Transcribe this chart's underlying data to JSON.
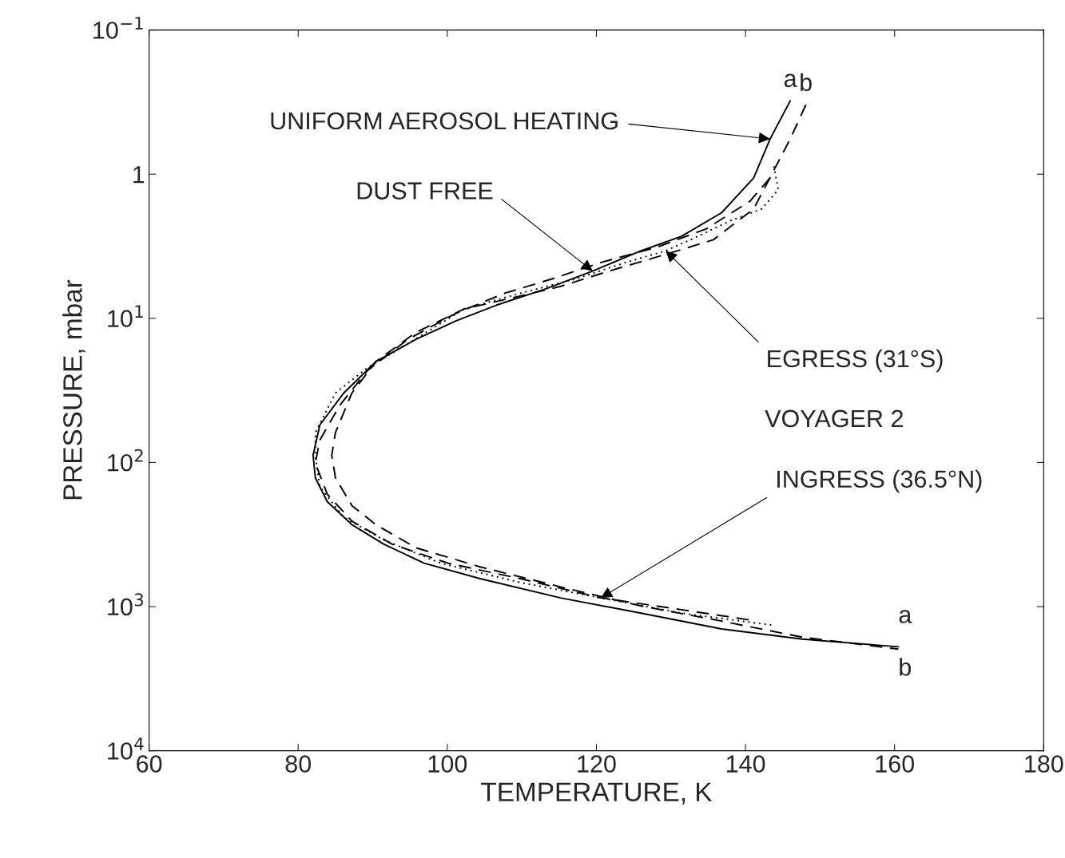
{
  "chart_data": {
    "type": "line",
    "xlabel": "TEMPERATURE, K",
    "ylabel": "PRESSURE, mbar",
    "log": "y",
    "xlim": [
      60,
      180
    ],
    "xticks": [
      60,
      80,
      100,
      120,
      140,
      160,
      180
    ],
    "ylim": [
      10000,
      0.1
    ],
    "yticks": [
      {
        "value": 0.1,
        "label": "10$^{−1}$"
      },
      1,
      {
        "value": 10,
        "label": "10$^{1}$"
      },
      {
        "value": 100,
        "label": "10$^{2}$"
      },
      {
        "value": 1000,
        "label": "10$^{3}$"
      },
      {
        "value": 10000,
        "label": "10$^{4}$"
      }
    ],
    "grid": false,
    "marker": "none",
    "series": [
      {
        "name": "a",
        "color": "#000000",
        "line_style": "solid",
        "x": [
          146,
          143.3,
          141.1,
          136.8,
          131.4,
          126,
          119.5,
          113,
          106.6,
          101.2,
          95.8,
          90.4,
          86.1,
          82.9,
          82,
          82.3,
          83.9,
          87.2,
          91.5,
          96.9,
          104.4,
          115.2,
          126,
          136.8,
          147.6,
          160.5
        ],
        "values": [
          0.31,
          0.57,
          1.06,
          1.85,
          2.7,
          3.4,
          4.7,
          6.3,
          8.1,
          10.4,
          14,
          20,
          33,
          55,
          89,
          128,
          187,
          270,
          369,
          500,
          640,
          870,
          1110,
          1430,
          1680,
          1900
        ]
      },
      {
        "name": "b",
        "color": "#000000",
        "line_style": "dashed",
        "x": [
          148.1,
          146,
          143.8,
          141.1,
          135.7,
          129.3,
          121.7,
          115.2,
          108.8,
          102.3,
          95.8,
          90.4,
          87.2,
          85,
          84.5,
          85,
          87.2,
          90.4,
          95.8,
          104.4,
          115.2,
          126,
          136.8,
          147.6,
          160.5
        ],
        "values": [
          0.33,
          0.57,
          0.94,
          1.74,
          2.85,
          3.6,
          4.7,
          6,
          7.2,
          8.6,
          12.5,
          20,
          33,
          62,
          89,
          128,
          199,
          270,
          391,
          530,
          730,
          990,
          1260,
          1630,
          1970
        ]
      },
      {
        "color": "#000000",
        "line_style": "dotted",
        "x": [
          143.8,
          144.4,
          142.2,
          138,
          133.6,
          129.3,
          123.9,
          117.4,
          109.8,
          102.3,
          94.7,
          89.3,
          85,
          82.3,
          82.3,
          82.9,
          86.1,
          91.5,
          99.1,
          109.8,
          120.6,
          131.4,
          143.8
        ],
        "values": [
          0.88,
          1.28,
          1.74,
          2.1,
          2.7,
          3.4,
          4.1,
          5.3,
          6.7,
          8.6,
          15,
          22,
          33,
          62,
          89,
          147,
          240,
          345,
          500,
          680,
          870,
          1110,
          1350
        ]
      },
      {
        "color": "#000000",
        "line_style": "dashed",
        "x": [
          143.3,
          140.6,
          134.7,
          128.2,
          120.6,
          114.2,
          107.7,
          101.2,
          94.7,
          89.3,
          85.6,
          82.9,
          82.3,
          83.9,
          87.2,
          92.6,
          100.1,
          109.8,
          120.6,
          131.4,
          141.1
        ],
        "values": [
          1.06,
          1.54,
          2.4,
          3.2,
          4.1,
          5.3,
          6.7,
          9.2,
          14,
          23,
          40,
          70,
          101,
          166,
          255,
          369,
          500,
          640,
          870,
          1050,
          1250
        ]
      }
    ],
    "annotations": [
      {
        "text": "UNIFORM AEROSOL HEATING",
        "x": 143.3,
        "y": 0.57
      },
      {
        "text": "DUST FREE",
        "x": 119.5,
        "y": 4.7
      },
      {
        "text": "EGRESS (31°S)",
        "x": 129.3,
        "y": 3.4
      },
      "VOYAGER 2",
      {
        "text": "INGRESS (36.5°N)",
        "x": 120.6,
        "y": 870
      },
      {
        "text": "a",
        "x": 160.5,
        "y": 1900
      },
      {
        "text": "b",
        "x": 160.5,
        "y": 1970
      }
    ]
  }
}
